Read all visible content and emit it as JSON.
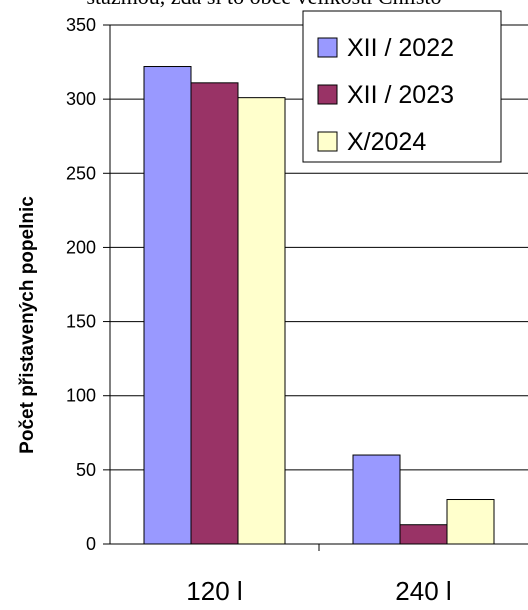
{
  "header_fragment": "stazmou, zda si to obce velikosti Chlisto",
  "chart_data": {
    "type": "bar",
    "title": "",
    "xlabel": "",
    "ylabel": "Počet přistavených popelnic",
    "ylim": [
      0,
      350
    ],
    "yticks": [
      0,
      50,
      100,
      150,
      200,
      250,
      300,
      350
    ],
    "categories": [
      "120 l",
      "240 l"
    ],
    "series": [
      {
        "name": "XII / 2022",
        "values": [
          322,
          60
        ],
        "color": "#9999ff"
      },
      {
        "name": "XII / 2023",
        "values": [
          311,
          13
        ],
        "color": "#993366"
      },
      {
        "name": "X/2024",
        "values": [
          301,
          30
        ],
        "color": "#ffffcc"
      }
    ],
    "grid": true,
    "legend_position": "top-right"
  }
}
